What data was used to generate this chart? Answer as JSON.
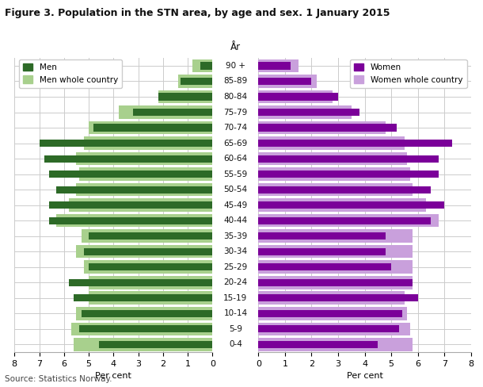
{
  "title": "Figure 3. Population in the STN area, by age and sex. 1 January 2015",
  "source": "Source: Statistics Norway.",
  "age_groups": [
    "0-4",
    "5-9",
    "10-14",
    "15-19",
    "20-24",
    "25-29",
    "30-34",
    "35-39",
    "40-44",
    "45-49",
    "50-54",
    "55-59",
    "60-64",
    "65-69",
    "70-74",
    "75-79",
    "80-84",
    "85-89",
    "90 +"
  ],
  "men": [
    4.6,
    5.4,
    5.3,
    5.6,
    5.8,
    5.0,
    5.2,
    5.0,
    6.6,
    6.6,
    6.3,
    6.6,
    6.8,
    7.0,
    4.8,
    3.2,
    2.2,
    1.3,
    0.5
  ],
  "men_country": [
    5.6,
    5.7,
    5.5,
    5.0,
    5.0,
    5.2,
    5.5,
    5.3,
    6.3,
    5.8,
    5.5,
    5.4,
    5.5,
    5.2,
    5.0,
    3.8,
    2.2,
    1.4,
    0.8
  ],
  "women": [
    4.5,
    5.3,
    5.4,
    6.0,
    5.8,
    5.0,
    4.8,
    4.8,
    6.5,
    7.0,
    6.5,
    6.8,
    6.8,
    7.3,
    5.2,
    3.8,
    3.0,
    2.0,
    1.2
  ],
  "women_country": [
    5.8,
    5.7,
    5.6,
    5.5,
    5.8,
    5.8,
    5.8,
    5.8,
    6.8,
    6.3,
    5.8,
    5.7,
    5.6,
    5.5,
    4.8,
    3.5,
    2.8,
    2.2,
    1.5
  ],
  "color_men": "#2d6a27",
  "color_men_country": "#a8d08d",
  "color_women": "#7b0099",
  "color_women_country": "#c9a0dc",
  "xlabel": "Per cent",
  "xlim": 8,
  "background_color": "#ffffff",
  "grid_color": "#cccccc"
}
